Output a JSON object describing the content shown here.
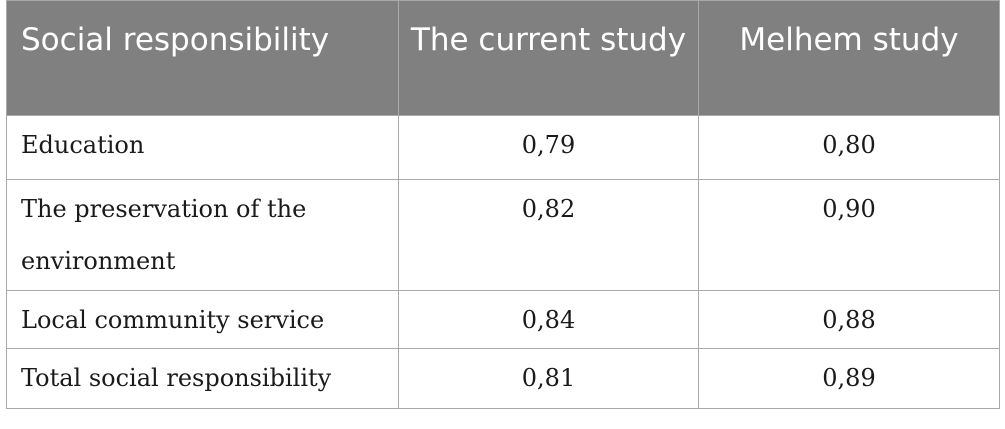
{
  "table": {
    "headers": [
      "Social responsibility",
      "The current study",
      "Melhem study"
    ],
    "rows": [
      {
        "label": "Education",
        "current": "0,79",
        "melhem": "0,80"
      },
      {
        "label": "The preservation of the environment",
        "current": "0,82",
        "melhem": "0,90"
      },
      {
        "label": "Local community service",
        "current": "0,84",
        "melhem": "0,88"
      },
      {
        "label": "Total social responsibility",
        "current": "0,81",
        "melhem": "0,89"
      }
    ]
  },
  "colors": {
    "header_bg": "#808080",
    "header_text": "#ffffff",
    "border": "#a9a9a9"
  }
}
